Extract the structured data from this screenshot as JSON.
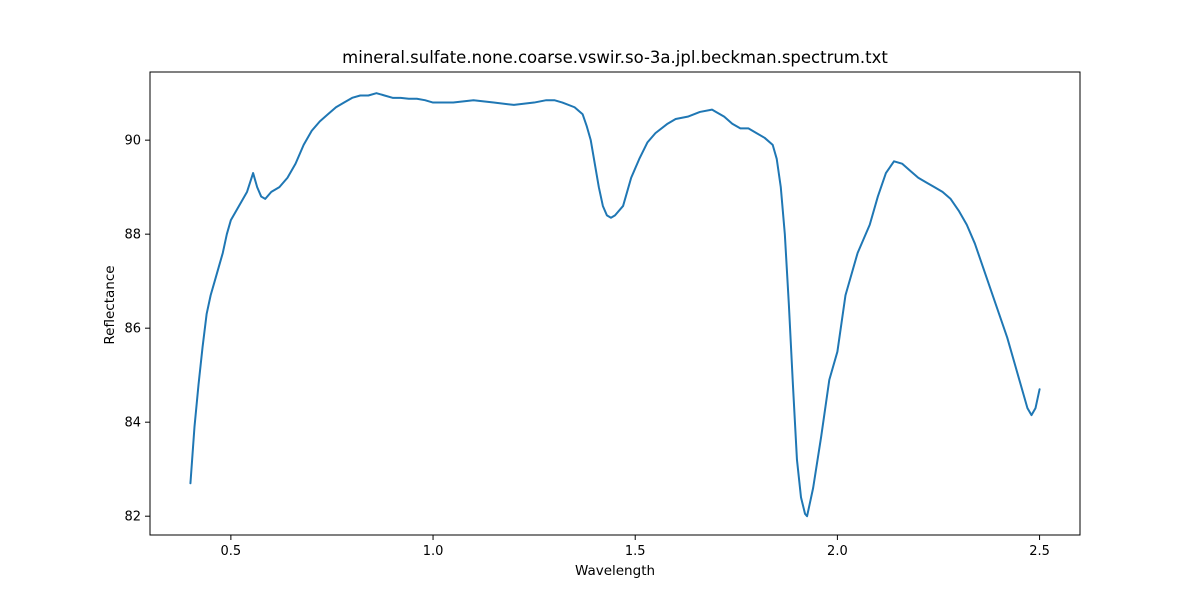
{
  "chart_data": {
    "type": "line",
    "title": "mineral.sulfate.none.coarse.vswir.so-3a.jpl.beckman.spectrum.txt",
    "xlabel": "Wavelength",
    "ylabel": "Reflectance",
    "xlim": [
      0.3,
      2.6
    ],
    "ylim": [
      81.6,
      91.45
    ],
    "xticks": [
      0.5,
      1.0,
      1.5,
      2.0,
      2.5
    ],
    "xtick_labels": [
      "0.5",
      "1.0",
      "1.5",
      "2.0",
      "2.5"
    ],
    "yticks": [
      82,
      84,
      86,
      88,
      90
    ],
    "ytick_labels": [
      "82",
      "84",
      "86",
      "88",
      "90"
    ],
    "grid": false,
    "line_color": "#1f77b4",
    "series": [
      {
        "x": [
          0.4,
          0.405,
          0.41,
          0.42,
          0.43,
          0.44,
          0.45,
          0.46,
          0.47,
          0.48,
          0.49,
          0.5,
          0.52,
          0.54,
          0.555,
          0.565,
          0.575,
          0.585,
          0.6,
          0.62,
          0.64,
          0.66,
          0.68,
          0.7,
          0.72,
          0.74,
          0.76,
          0.78,
          0.8,
          0.82,
          0.84,
          0.86,
          0.88,
          0.9,
          0.92,
          0.94,
          0.96,
          0.98,
          1.0,
          1.05,
          1.1,
          1.15,
          1.2,
          1.25,
          1.28,
          1.3,
          1.32,
          1.35,
          1.37,
          1.38,
          1.39,
          1.4,
          1.41,
          1.42,
          1.43,
          1.44,
          1.45,
          1.47,
          1.49,
          1.51,
          1.53,
          1.55,
          1.58,
          1.6,
          1.63,
          1.66,
          1.69,
          1.7,
          1.72,
          1.74,
          1.76,
          1.78,
          1.8,
          1.82,
          1.84,
          1.85,
          1.86,
          1.87,
          1.88,
          1.89,
          1.9,
          1.91,
          1.92,
          1.925,
          1.93,
          1.94,
          1.96,
          1.98,
          2.0,
          2.02,
          2.05,
          2.08,
          2.1,
          2.12,
          2.14,
          2.16,
          2.18,
          2.2,
          2.22,
          2.24,
          2.26,
          2.28,
          2.3,
          2.32,
          2.34,
          2.36,
          2.38,
          2.4,
          2.42,
          2.44,
          2.46,
          2.47,
          2.48,
          2.49,
          2.5
        ],
        "y": [
          82.7,
          83.3,
          83.9,
          84.8,
          85.6,
          86.3,
          86.7,
          87.0,
          87.3,
          87.6,
          88.0,
          88.3,
          88.6,
          88.9,
          89.3,
          89.0,
          88.8,
          88.75,
          88.9,
          89.0,
          89.2,
          89.5,
          89.9,
          90.2,
          90.4,
          90.55,
          90.7,
          90.8,
          90.9,
          90.95,
          90.95,
          91.0,
          90.95,
          90.9,
          90.9,
          90.88,
          90.88,
          90.85,
          90.8,
          90.8,
          90.85,
          90.8,
          90.75,
          90.8,
          90.85,
          90.85,
          90.8,
          90.7,
          90.55,
          90.3,
          90.0,
          89.5,
          89.0,
          88.6,
          88.4,
          88.35,
          88.4,
          88.6,
          89.2,
          89.6,
          89.95,
          90.15,
          90.35,
          90.45,
          90.5,
          90.6,
          90.65,
          90.6,
          90.5,
          90.35,
          90.25,
          90.25,
          90.15,
          90.05,
          89.9,
          89.6,
          89.0,
          88.0,
          86.5,
          84.8,
          83.2,
          82.4,
          82.05,
          82.0,
          82.2,
          82.6,
          83.7,
          84.9,
          85.5,
          86.7,
          87.6,
          88.2,
          88.8,
          89.3,
          89.55,
          89.5,
          89.35,
          89.2,
          89.1,
          89.0,
          88.9,
          88.75,
          88.5,
          88.2,
          87.8,
          87.3,
          86.8,
          86.3,
          85.8,
          85.2,
          84.6,
          84.3,
          84.15,
          84.3,
          84.7
        ]
      }
    ]
  }
}
